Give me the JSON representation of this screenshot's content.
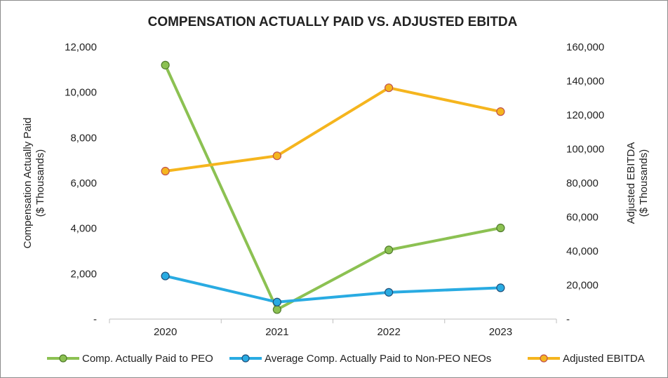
{
  "chart_data": {
    "type": "line",
    "title": "COMPENSATION ACTUALLY PAID VS. ADJUSTED EBITDA",
    "categories": [
      "2020",
      "2021",
      "2022",
      "2023"
    ],
    "ylabel_left": [
      "Compensation Actually Paid",
      "($ Thousands)"
    ],
    "ylabel_right": [
      "Adjusted EBITDA",
      "($ Thousands)"
    ],
    "ylim_left": [
      0,
      12000
    ],
    "ylim_right": [
      0,
      160000
    ],
    "yticks_left": [
      0,
      2000,
      4000,
      6000,
      8000,
      10000,
      12000
    ],
    "yticks_left_labels": [
      "-",
      "2,000",
      "4,000",
      "6,000",
      "8,000",
      "10,000",
      "12,000"
    ],
    "yticks_right": [
      0,
      20000,
      40000,
      60000,
      80000,
      100000,
      120000,
      140000,
      160000
    ],
    "yticks_right_labels": [
      "-",
      "20,000",
      "40,000",
      "60,000",
      "80,000",
      "100,000",
      "120,000",
      "140,000",
      "160,000"
    ],
    "series": [
      {
        "name": "Comp. Actually Paid to PEO",
        "axis": "left",
        "color": "#8cc152",
        "marker_color": "#8cc152",
        "marker_edge": "#4f7a2a",
        "values": [
          11200,
          420,
          3050,
          4020
        ]
      },
      {
        "name": "Average Comp. Actually Paid to Non-PEO NEOs",
        "axis": "left",
        "color": "#29abe2",
        "marker_color": "#29abe2",
        "marker_edge": "#1f4e79",
        "values": [
          1900,
          750,
          1180,
          1380
        ]
      },
      {
        "name": "Adjusted EBITDA",
        "axis": "right",
        "color": "#f5b51e",
        "marker_color": "#f5b51e",
        "marker_edge": "#c0504d",
        "values": [
          87000,
          96000,
          136000,
          122000
        ]
      }
    ],
    "legend_position": "bottom"
  }
}
